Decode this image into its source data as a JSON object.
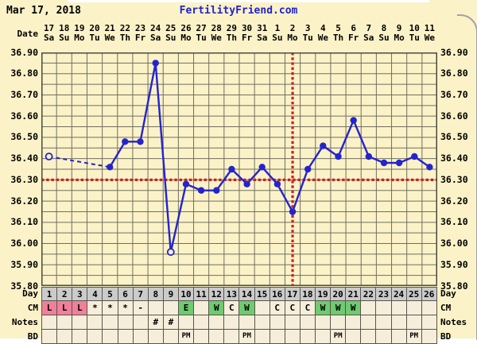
{
  "header": {
    "date_label": "Mar 17, 2018",
    "site_link": "FertilityFriend.com",
    "date_axis_label": "Date"
  },
  "colors": {
    "background": "#FBF2C8",
    "cell_bg": "#F6EEDA",
    "grid": "#6F6F60",
    "plot_border": "#4A4A40",
    "line_blue": "#2424CE",
    "red": "#CC2020",
    "day_row_bg": "#CBCBCB",
    "pink": "#F0809A",
    "green": "#6FCB6F"
  },
  "chart_data": {
    "type": "line",
    "title": "Basal body temperature chart",
    "x_axis_label": "Date",
    "dates": [
      "17",
      "18",
      "19",
      "20",
      "21",
      "22",
      "23",
      "24",
      "25",
      "26",
      "27",
      "28",
      "29",
      "30",
      "31",
      "1",
      "2",
      "3",
      "4",
      "5",
      "6",
      "7",
      "8",
      "9",
      "10",
      "11"
    ],
    "weekdays": [
      "Sa",
      "Su",
      "Mo",
      "Tu",
      "We",
      "Th",
      "Fr",
      "Sa",
      "Su",
      "Mo",
      "Tu",
      "We",
      "Th",
      "Fr",
      "Sa",
      "Su",
      "Mo",
      "Tu",
      "We",
      "Th",
      "Fr",
      "Sa",
      "Su",
      "Mo",
      "Tu",
      "We"
    ],
    "y_ticks": [
      "36.90",
      "36.80",
      "36.70",
      "36.60",
      "36.50",
      "36.40",
      "36.30",
      "36.20",
      "36.10",
      "36.00",
      "35.90",
      "35.80"
    ],
    "ylim": [
      35.8,
      36.9
    ],
    "coverline_temp": 36.3,
    "vertical_line_day": 17,
    "series": [
      {
        "name": "temperature",
        "dashed_between_days": [
          1,
          5
        ],
        "points": [
          {
            "day": 1,
            "temp": 36.41,
            "open": true
          },
          {
            "day": 5,
            "temp": 36.36
          },
          {
            "day": 6,
            "temp": 36.48
          },
          {
            "day": 7,
            "temp": 36.48
          },
          {
            "day": 8,
            "temp": 36.85
          },
          {
            "day": 9,
            "temp": 35.96,
            "open": true
          },
          {
            "day": 10,
            "temp": 36.28
          },
          {
            "day": 11,
            "temp": 36.25
          },
          {
            "day": 12,
            "temp": 36.25
          },
          {
            "day": 13,
            "temp": 36.35
          },
          {
            "day": 14,
            "temp": 36.28
          },
          {
            "day": 15,
            "temp": 36.36
          },
          {
            "day": 16,
            "temp": 36.28
          },
          {
            "day": 17,
            "temp": 36.15
          },
          {
            "day": 18,
            "temp": 36.35
          },
          {
            "day": 19,
            "temp": 36.46
          },
          {
            "day": 20,
            "temp": 36.41
          },
          {
            "day": 21,
            "temp": 36.58
          },
          {
            "day": 22,
            "temp": 36.41
          },
          {
            "day": 23,
            "temp": 36.38
          },
          {
            "day": 24,
            "temp": 36.38
          },
          {
            "day": 25,
            "temp": 36.41
          },
          {
            "day": 26,
            "temp": 36.36
          }
        ]
      }
    ]
  },
  "table": {
    "day_row": {
      "label": "Day",
      "cells": [
        "1",
        "2",
        "3",
        "4",
        "5",
        "6",
        "7",
        "8",
        "9",
        "10",
        "11",
        "12",
        "13",
        "14",
        "15",
        "16",
        "17",
        "18",
        "19",
        "20",
        "21",
        "22",
        "23",
        "24",
        "25",
        "26"
      ]
    },
    "cm_row": {
      "label": "CM",
      "cells": [
        {
          "day": 1,
          "text": "L",
          "bg": "pink"
        },
        {
          "day": 2,
          "text": "L",
          "bg": "pink"
        },
        {
          "day": 3,
          "text": "L",
          "bg": "pink"
        },
        {
          "day": 4,
          "text": "*"
        },
        {
          "day": 5,
          "text": "*"
        },
        {
          "day": 6,
          "text": "*"
        },
        {
          "day": 7,
          "text": "-"
        },
        {
          "day": 10,
          "text": "E",
          "bg": "green"
        },
        {
          "day": 12,
          "text": "W",
          "bg": "green"
        },
        {
          "day": 13,
          "text": "C"
        },
        {
          "day": 14,
          "text": "W",
          "bg": "green"
        },
        {
          "day": 16,
          "text": "C"
        },
        {
          "day": 17,
          "text": "C"
        },
        {
          "day": 18,
          "text": "C"
        },
        {
          "day": 19,
          "text": "W",
          "bg": "green"
        },
        {
          "day": 20,
          "text": "W",
          "bg": "green"
        },
        {
          "day": 21,
          "text": "W",
          "bg": "green"
        }
      ]
    },
    "notes_row": {
      "label": "Notes",
      "cells": [
        {
          "day": 8,
          "text": "#"
        },
        {
          "day": 9,
          "text": "#"
        }
      ]
    },
    "bd_row": {
      "label": "BD",
      "cells": [
        {
          "day": 10,
          "text": "PM"
        },
        {
          "day": 14,
          "text": "PM"
        },
        {
          "day": 20,
          "text": "PM"
        },
        {
          "day": 25,
          "text": "PM"
        }
      ]
    }
  }
}
